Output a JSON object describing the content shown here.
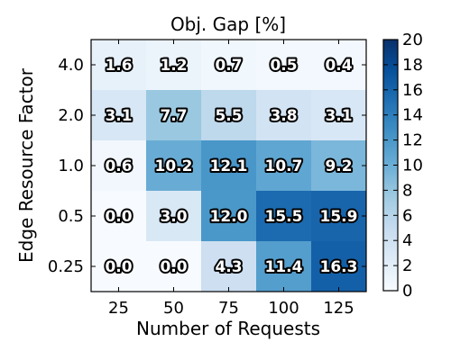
{
  "chart_data": {
    "type": "heatmap",
    "title": "Obj. Gap [%]",
    "xlabel": "Number of Requests",
    "ylabel": "Edge Resource Factor",
    "x_categories": [
      "25",
      "50",
      "75",
      "100",
      "125"
    ],
    "y_categories": [
      "4.0",
      "2.0",
      "1.0",
      "0.5",
      "0.25"
    ],
    "values": [
      [
        1.6,
        1.2,
        0.7,
        0.5,
        0.4
      ],
      [
        3.1,
        7.7,
        5.5,
        3.8,
        3.1
      ],
      [
        0.6,
        10.2,
        12.1,
        10.7,
        9.2
      ],
      [
        0.0,
        3.0,
        12.0,
        15.5,
        15.9
      ],
      [
        0.0,
        0.0,
        4.3,
        11.4,
        16.3
      ]
    ],
    "value_labels": [
      [
        "1.6",
        "1.2",
        "0.7",
        "0.5",
        "0.4"
      ],
      [
        "3.1",
        "7.7",
        "5.5",
        "3.8",
        "3.1"
      ],
      [
        "0.6",
        "10.2",
        "12.1",
        "10.7",
        "9.2"
      ],
      [
        "0.0",
        "3.0",
        "12.0",
        "15.5",
        "15.9"
      ],
      [
        "0.0",
        "0.0",
        "4.3",
        "11.4",
        "16.3"
      ]
    ],
    "colorbar": {
      "min": 0,
      "max": 20,
      "ticks": [
        "0",
        "2",
        "4",
        "6",
        "8",
        "10",
        "12",
        "14",
        "16",
        "18",
        "20"
      ]
    },
    "colormap": {
      "name": "Blues",
      "low": "#f7fbff",
      "high": "#08306b"
    },
    "grid": false
  }
}
